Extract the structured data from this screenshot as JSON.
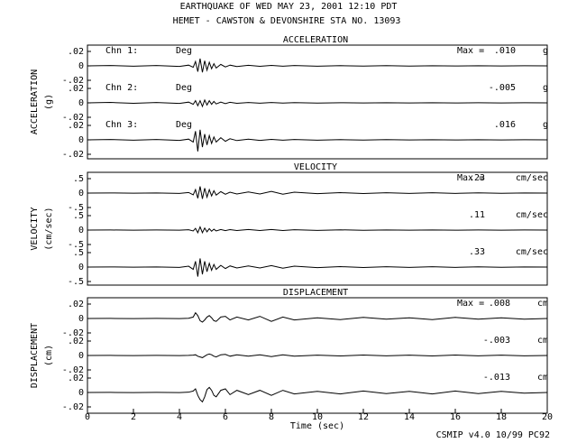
{
  "title": "EARTHQUAKE OF WED MAY 23, 2001  12:10 PDT",
  "subtitle": "HEMET - CAWSTON & DEVONSHIRE    STA NO. 13093",
  "footer": "CSMIP v4.0 10/99  PC92",
  "chart_data": [
    {
      "type": "line",
      "title": "ACCELERATION",
      "y_label": "ACCELERATION",
      "y_unit": "(g)",
      "peak_prefix": "Max =",
      "x": [
        0,
        1,
        2,
        3,
        4,
        4.4,
        4.6,
        4.7,
        4.8,
        4.9,
        5.0,
        5.1,
        5.2,
        5.3,
        5.4,
        5.5,
        5.6,
        5.8,
        6.0,
        6.2,
        6.5,
        7,
        7.5,
        8,
        8.5,
        9,
        10,
        11,
        12,
        13,
        14,
        15,
        16,
        17,
        18,
        19,
        20
      ],
      "xlim": [
        0,
        20
      ],
      "ylim": [
        -0.02,
        0.02
      ],
      "yticks": [
        {
          "value": 0.02,
          "label": ".02"
        },
        0,
        {
          "value": -0.02,
          "label": "-.02"
        }
      ],
      "series": [
        {
          "name": "Chn 1:",
          "orientation": "Deg",
          "color": "#000000",
          "peak_label": ".010",
          "unit": "g",
          "values": [
            0,
            0.0005,
            -0.0005,
            0.0005,
            -0.0008,
            0.001,
            -0.002,
            0.006,
            -0.008,
            0.01,
            -0.009,
            0.007,
            -0.006,
            0.005,
            -0.004,
            0.003,
            -0.003,
            0.002,
            -0.0015,
            0.001,
            -0.001,
            0.0008,
            -0.0006,
            0.0006,
            -0.0005,
            0.0004,
            -0.0004,
            0.0003,
            -0.0003,
            0.0003,
            -0.0003,
            0.0002,
            -0.0002,
            0.0002,
            -0.0002,
            0.0002,
            0
          ]
        },
        {
          "name": "Chn 2:",
          "orientation": "Deg",
          "color": "#000000",
          "peak_label": "-.005",
          "unit": "g",
          "values": [
            0,
            0.0006,
            -0.0006,
            0.0005,
            -0.0008,
            0.001,
            -0.002,
            0.003,
            -0.004,
            0.003,
            -0.005,
            0.004,
            -0.003,
            0.003,
            -0.002,
            0.002,
            -0.0015,
            0.001,
            -0.001,
            0.0008,
            -0.0006,
            0.0005,
            -0.0005,
            0.0004,
            -0.0003,
            0.0003,
            -0.0003,
            0.0002,
            -0.0002,
            0.0002,
            -0.0002,
            0.0002,
            -0.0002,
            0.0001,
            -0.0001,
            0.0001,
            0
          ]
        },
        {
          "name": "Chn 3:",
          "orientation": "Deg",
          "color": "#000000",
          "peak_label": ".016",
          "unit": "g",
          "values": [
            0,
            0.0005,
            -0.0005,
            0.0005,
            -0.0008,
            0.001,
            -0.003,
            0.012,
            -0.016,
            0.014,
            -0.01,
            0.008,
            -0.007,
            0.006,
            -0.005,
            0.004,
            -0.003,
            0.003,
            -0.002,
            0.0015,
            -0.001,
            0.001,
            -0.0008,
            0.0006,
            -0.0005,
            0.0004,
            -0.0004,
            0.0003,
            -0.0003,
            0.0003,
            -0.0002,
            0.0002,
            -0.0002,
            0.0002,
            -0.0002,
            0.0001,
            0
          ]
        }
      ]
    },
    {
      "type": "line",
      "title": "VELOCITY",
      "y_label": "VELOCITY",
      "y_unit": "(cm/sec)",
      "peak_prefix": "Max =",
      "x": [
        0,
        1,
        2,
        3,
        4,
        4.4,
        4.6,
        4.7,
        4.8,
        4.9,
        5.0,
        5.1,
        5.2,
        5.3,
        5.4,
        5.5,
        5.6,
        5.8,
        6.0,
        6.2,
        6.5,
        7,
        7.5,
        8,
        8.5,
        9,
        10,
        11,
        12,
        13,
        14,
        15,
        16,
        17,
        18,
        19,
        20
      ],
      "xlim": [
        0,
        20
      ],
      "ylim": [
        -0.5,
        0.5
      ],
      "yticks": [
        {
          "value": 0.5,
          "label": ".5"
        },
        0,
        {
          "value": -0.5,
          "label": "-.5"
        }
      ],
      "series": [
        {
          "color": "#000000",
          "peak_label": ".23",
          "unit": "cm/sec",
          "values": [
            0,
            0.005,
            -0.005,
            0.005,
            -0.01,
            0.02,
            -0.06,
            0.12,
            -0.18,
            0.23,
            -0.2,
            0.17,
            -0.14,
            0.12,
            -0.1,
            0.08,
            -0.07,
            0.05,
            -0.04,
            0.03,
            -0.03,
            0.04,
            -0.03,
            0.06,
            -0.04,
            0.03,
            -0.02,
            0.015,
            -0.015,
            0.01,
            -0.01,
            0.01,
            -0.01,
            0.008,
            -0.008,
            0.005,
            0
          ]
        },
        {
          "color": "#000000",
          "peak_label": ".11",
          "unit": "cm/sec",
          "values": [
            0,
            0.003,
            -0.003,
            0.003,
            -0.005,
            0.01,
            -0.03,
            0.06,
            -0.09,
            0.11,
            -0.09,
            0.07,
            -0.06,
            0.05,
            -0.04,
            0.03,
            -0.03,
            0.02,
            -0.02,
            0.015,
            -0.015,
            0.02,
            -0.015,
            0.02,
            -0.015,
            0.01,
            -0.01,
            0.008,
            -0.008,
            0.005,
            -0.005,
            0.005,
            -0.005,
            0.004,
            -0.004,
            0.003,
            0
          ]
        },
        {
          "color": "#000000",
          "peak_label": ".33",
          "unit": "cm/sec",
          "values": [
            0,
            0.005,
            -0.005,
            0.005,
            -0.01,
            0.03,
            -0.08,
            0.2,
            -0.33,
            0.3,
            -0.25,
            0.2,
            -0.16,
            0.13,
            -0.11,
            0.09,
            -0.08,
            0.06,
            -0.05,
            0.04,
            -0.03,
            0.04,
            -0.03,
            0.05,
            -0.04,
            0.03,
            -0.02,
            0.015,
            -0.015,
            0.01,
            -0.01,
            0.01,
            -0.01,
            0.008,
            -0.008,
            0.005,
            0
          ]
        }
      ]
    },
    {
      "type": "line",
      "title": "DISPLACEMENT",
      "y_label": "DISPLACEMENT",
      "y_unit": "(cm)",
      "peak_prefix": "Max =",
      "x": [
        0,
        1,
        2,
        3,
        4,
        4.4,
        4.6,
        4.7,
        4.8,
        4.9,
        5.0,
        5.1,
        5.2,
        5.3,
        5.4,
        5.5,
        5.6,
        5.8,
        6.0,
        6.2,
        6.5,
        7,
        7.5,
        8,
        8.5,
        9,
        10,
        11,
        12,
        13,
        14,
        15,
        16,
        17,
        18,
        19,
        20
      ],
      "xlim": [
        0,
        20
      ],
      "xticks": [
        0,
        2,
        4,
        6,
        8,
        10,
        12,
        14,
        16,
        18,
        20
      ],
      "x_label": "Time (sec)",
      "ylim": [
        -0.02,
        0.02
      ],
      "yticks": [
        {
          "value": 0.02,
          "label": ".02"
        },
        0,
        {
          "value": -0.02,
          "label": "-.02"
        }
      ],
      "series": [
        {
          "color": "#000000",
          "peak_label": ".008",
          "unit": "cm",
          "values": [
            0,
            0.0001,
            -0.0001,
            0.0001,
            -0.0002,
            0.0003,
            0.002,
            0.008,
            0.004,
            -0.003,
            -0.005,
            -0.002,
            0.002,
            0.004,
            0.001,
            -0.003,
            -0.004,
            0.002,
            0.003,
            -0.002,
            0.002,
            -0.002,
            0.003,
            -0.004,
            0.002,
            -0.002,
            0.001,
            -0.0015,
            0.0015,
            -0.001,
            0.001,
            -0.0015,
            0.0015,
            -0.001,
            0.001,
            -0.001,
            0
          ]
        },
        {
          "color": "#000000",
          "peak_label": "-.003",
          "unit": "cm",
          "values": [
            0,
            0.0001,
            -0.0001,
            0.0001,
            -0.0001,
            0.0002,
            0.0005,
            0.001,
            -0.001,
            -0.002,
            -0.003,
            -0.001,
            0.001,
            0.002,
            0.001,
            -0.001,
            -0.002,
            0.001,
            0.0015,
            -0.001,
            0.001,
            -0.001,
            0.001,
            -0.0015,
            0.001,
            -0.001,
            0.0005,
            -0.0007,
            0.0007,
            -0.0005,
            0.0005,
            -0.0006,
            0.0006,
            -0.0005,
            0.0005,
            -0.0004,
            0
          ]
        },
        {
          "color": "#000000",
          "peak_label": "-.013",
          "unit": "cm",
          "values": [
            0,
            0.0001,
            -0.0001,
            0.0001,
            -0.0002,
            0.0004,
            0.002,
            0.005,
            -0.004,
            -0.01,
            -0.013,
            -0.006,
            0.004,
            0.007,
            0.003,
            -0.004,
            -0.006,
            0.003,
            0.005,
            -0.003,
            0.003,
            -0.003,
            0.003,
            -0.004,
            0.003,
            -0.002,
            0.0015,
            -0.002,
            0.002,
            -0.0015,
            0.0015,
            -0.002,
            0.002,
            -0.0015,
            0.0015,
            -0.001,
            0
          ]
        }
      ]
    }
  ]
}
